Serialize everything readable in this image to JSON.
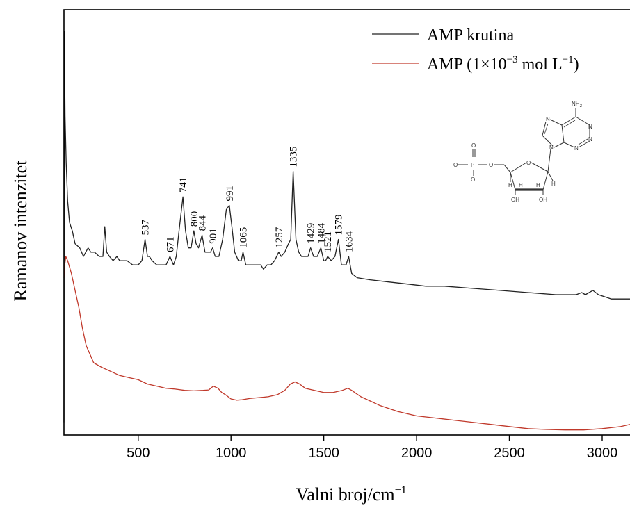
{
  "chart_data": {
    "type": "line",
    "xlabel": "Valni broj/cm",
    "xlabel_sup": "−1",
    "ylabel": "Ramanov intenzitet",
    "xlim": [
      100,
      3150
    ],
    "ylim": [
      0,
      100
    ],
    "x_ticks": [
      500,
      1000,
      1500,
      2000,
      2500,
      3000
    ],
    "x_tick_labels": [
      "500",
      "1000",
      "1500",
      "2000",
      "2500",
      "3000"
    ],
    "y_ticks_shown": false,
    "grid": false,
    "legend": {
      "placement": "top-right",
      "entries": [
        {
          "label": "AMP krutina",
          "color": "#222222"
        },
        {
          "label_parts": [
            "AMP (1×10",
            "−3",
            " mol L",
            "−1",
            ")"
          ],
          "color": "#c0392b"
        }
      ]
    },
    "series": [
      {
        "color": "#222222",
        "points": [
          [
            100,
            3
          ],
          [
            102,
            95
          ],
          [
            106,
            75
          ],
          [
            112,
            64
          ],
          [
            120,
            55
          ],
          [
            130,
            50
          ],
          [
            145,
            48
          ],
          [
            160,
            45
          ],
          [
            185,
            44
          ],
          [
            205,
            42
          ],
          [
            230,
            44
          ],
          [
            245,
            43
          ],
          [
            265,
            43
          ],
          [
            290,
            42
          ],
          [
            310,
            42
          ],
          [
            320,
            49
          ],
          [
            330,
            43
          ],
          [
            345,
            42
          ],
          [
            365,
            41
          ],
          [
            385,
            42
          ],
          [
            400,
            41
          ],
          [
            420,
            41
          ],
          [
            440,
            41
          ],
          [
            470,
            40
          ],
          [
            500,
            40
          ],
          [
            520,
            41
          ],
          [
            537,
            46
          ],
          [
            550,
            42
          ],
          [
            560,
            42
          ],
          [
            575,
            41
          ],
          [
            600,
            40
          ],
          [
            625,
            40
          ],
          [
            650,
            40
          ],
          [
            671,
            42
          ],
          [
            690,
            40
          ],
          [
            705,
            42
          ],
          [
            720,
            48
          ],
          [
            741,
            56
          ],
          [
            755,
            48
          ],
          [
            770,
            44
          ],
          [
            785,
            44
          ],
          [
            800,
            48
          ],
          [
            812,
            45
          ],
          [
            825,
            44
          ],
          [
            844,
            47
          ],
          [
            860,
            43
          ],
          [
            875,
            43
          ],
          [
            890,
            43
          ],
          [
            901,
            44
          ],
          [
            915,
            42
          ],
          [
            935,
            42
          ],
          [
            955,
            46
          ],
          [
            975,
            53
          ],
          [
            991,
            54
          ],
          [
            1005,
            49
          ],
          [
            1020,
            43
          ],
          [
            1040,
            41
          ],
          [
            1055,
            41
          ],
          [
            1065,
            43
          ],
          [
            1080,
            40
          ],
          [
            1100,
            40
          ],
          [
            1120,
            40
          ],
          [
            1140,
            40
          ],
          [
            1160,
            40
          ],
          [
            1175,
            39
          ],
          [
            1195,
            40
          ],
          [
            1215,
            40
          ],
          [
            1235,
            41
          ],
          [
            1257,
            43
          ],
          [
            1270,
            42
          ],
          [
            1290,
            43
          ],
          [
            1310,
            45
          ],
          [
            1322,
            46
          ],
          [
            1335,
            62
          ],
          [
            1350,
            46
          ],
          [
            1365,
            43
          ],
          [
            1380,
            42
          ],
          [
            1400,
            42
          ],
          [
            1415,
            42
          ],
          [
            1429,
            44
          ],
          [
            1445,
            42
          ],
          [
            1465,
            42
          ],
          [
            1484,
            44
          ],
          [
            1500,
            41
          ],
          [
            1510,
            41
          ],
          [
            1521,
            42
          ],
          [
            1540,
            41
          ],
          [
            1560,
            42
          ],
          [
            1579,
            46
          ],
          [
            1595,
            40
          ],
          [
            1610,
            40
          ],
          [
            1620,
            40
          ],
          [
            1634,
            42
          ],
          [
            1650,
            38
          ],
          [
            1680,
            37
          ],
          [
            1750,
            36.5
          ],
          [
            1850,
            36
          ],
          [
            1950,
            35.5
          ],
          [
            2050,
            35
          ],
          [
            2150,
            35
          ],
          [
            2300,
            34.5
          ],
          [
            2450,
            34
          ],
          [
            2600,
            33.5
          ],
          [
            2750,
            33
          ],
          [
            2860,
            33
          ],
          [
            2890,
            33.5
          ],
          [
            2910,
            33
          ],
          [
            2950,
            34
          ],
          [
            2980,
            33
          ],
          [
            3050,
            32
          ],
          [
            3150,
            32
          ]
        ]
      },
      {
        "color": "#c0392b",
        "points": [
          [
            100,
            37
          ],
          [
            104,
            40
          ],
          [
            110,
            42
          ],
          [
            120,
            41
          ],
          [
            140,
            38
          ],
          [
            160,
            34
          ],
          [
            180,
            30
          ],
          [
            200,
            25
          ],
          [
            220,
            21
          ],
          [
            240,
            19
          ],
          [
            260,
            17
          ],
          [
            280,
            16.5
          ],
          [
            300,
            16
          ],
          [
            350,
            15
          ],
          [
            400,
            14
          ],
          [
            450,
            13.5
          ],
          [
            500,
            13
          ],
          [
            550,
            12
          ],
          [
            600,
            11.5
          ],
          [
            650,
            11
          ],
          [
            700,
            10.8
          ],
          [
            750,
            10.5
          ],
          [
            800,
            10.4
          ],
          [
            850,
            10.5
          ],
          [
            880,
            10.6
          ],
          [
            905,
            11.5
          ],
          [
            930,
            11
          ],
          [
            950,
            10
          ],
          [
            970,
            9.5
          ],
          [
            1000,
            8.5
          ],
          [
            1030,
            8.2
          ],
          [
            1060,
            8.3
          ],
          [
            1100,
            8.6
          ],
          [
            1150,
            8.8
          ],
          [
            1200,
            9
          ],
          [
            1250,
            9.5
          ],
          [
            1290,
            10.5
          ],
          [
            1320,
            12
          ],
          [
            1345,
            12.5
          ],
          [
            1370,
            12
          ],
          [
            1400,
            11
          ],
          [
            1450,
            10.5
          ],
          [
            1500,
            10
          ],
          [
            1550,
            10
          ],
          [
            1600,
            10.5
          ],
          [
            1630,
            11
          ],
          [
            1650,
            10.5
          ],
          [
            1700,
            9
          ],
          [
            1750,
            8
          ],
          [
            1800,
            7
          ],
          [
            1900,
            5.5
          ],
          [
            2000,
            4.5
          ],
          [
            2100,
            4
          ],
          [
            2200,
            3.5
          ],
          [
            2300,
            3
          ],
          [
            2400,
            2.5
          ],
          [
            2500,
            2
          ],
          [
            2600,
            1.5
          ],
          [
            2700,
            1.3
          ],
          [
            2800,
            1.2
          ],
          [
            2900,
            1.2
          ],
          [
            3000,
            1.5
          ],
          [
            3100,
            2
          ],
          [
            3150,
            2.5
          ]
        ]
      }
    ],
    "peak_labels": [
      {
        "x": 537,
        "y": 46,
        "text": "537"
      },
      {
        "x": 671,
        "y": 42,
        "text": "671"
      },
      {
        "x": 741,
        "y": 56,
        "text": "741"
      },
      {
        "x": 800,
        "y": 48,
        "text": "800"
      },
      {
        "x": 844,
        "y": 47,
        "text": "844"
      },
      {
        "x": 901,
        "y": 44,
        "text": "901"
      },
      {
        "x": 991,
        "y": 54,
        "text": "991"
      },
      {
        "x": 1065,
        "y": 43,
        "text": "1065"
      },
      {
        "x": 1257,
        "y": 43,
        "text": "1257"
      },
      {
        "x": 1335,
        "y": 62,
        "text": "1335"
      },
      {
        "x": 1429,
        "y": 44,
        "text": "1429"
      },
      {
        "x": 1484,
        "y": 44,
        "text": "1484"
      },
      {
        "x": 1521,
        "y": 42,
        "text": "1521"
      },
      {
        "x": 1579,
        "y": 46,
        "text": "1579"
      },
      {
        "x": 1634,
        "y": 42,
        "text": "1634"
      }
    ],
    "structure_labels": {
      "amine": "NH",
      "amine_sub": "2",
      "oxy_left": "O",
      "oxy_top": "O",
      "oxy_bottom": "O",
      "phosphorus": "P",
      "ester_o": "O",
      "ring_o": "O",
      "n_top": "N",
      "n_right1": "N",
      "n_right2": "N",
      "n_bottom": "N",
      "n9": "N",
      "h_left": "H",
      "h_mid1": "H",
      "h_mid2": "H",
      "h_right": "H",
      "oh_left": "OH",
      "oh_right": "OH"
    }
  }
}
